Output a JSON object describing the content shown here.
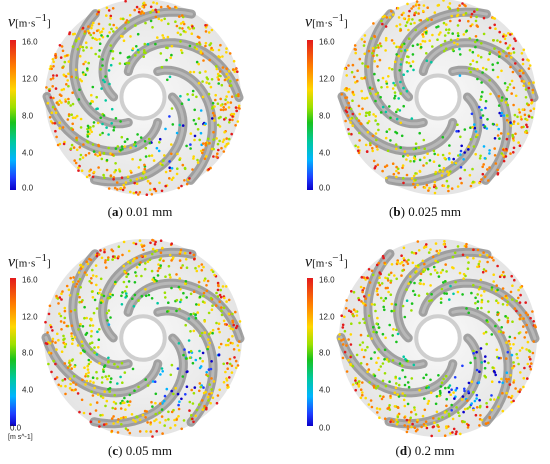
{
  "panels": [
    {
      "legend": {
        "symbol": "v",
        "unit": "[m·s",
        "exp": "−1",
        "close": "]",
        "ticks": [
          "16.0",
          "12.0",
          "8.0",
          "4.0",
          "0.0"
        ],
        "extra_unit": ""
      },
      "caption": {
        "letter": "a",
        "text": " 0.01 mm"
      }
    },
    {
      "legend": {
        "symbol": "v",
        "unit": "[m·s",
        "exp": "−1",
        "close": "]",
        "ticks": [
          "16.0",
          "12.0",
          "8.0",
          "4.0",
          "0.0"
        ],
        "extra_unit": ""
      },
      "caption": {
        "letter": "b",
        "text": " 0.025 mm"
      }
    },
    {
      "legend": {
        "symbol": "v",
        "unit": "[m·s",
        "exp": "−1",
        "close": "]",
        "ticks": [
          "16.0",
          "12.0",
          "8.0",
          "4.0",
          "0.0"
        ],
        "extra_unit": "[m s^-1]"
      },
      "caption": {
        "letter": "c",
        "text": " 0.05 mm"
      }
    },
    {
      "legend": {
        "symbol": "v",
        "unit": "[m·s",
        "exp": "−1",
        "close": "]",
        "ticks": [
          "16.0",
          "12.0",
          "8.0",
          "4.0",
          "0.0"
        ],
        "extra_unit": ""
      },
      "caption": {
        "letter": "d",
        "text": " 0.2 mm"
      }
    }
  ],
  "colors": {
    "blade": "#8c8c8c",
    "hub": "#d9d9d9",
    "scale": [
      "#e31a1c",
      "#ff7f00",
      "#ffd700",
      "#9be000",
      "#19c21c",
      "#00c8a0",
      "#00b4ff",
      "#1e3cff",
      "#0a00c8"
    ]
  }
}
